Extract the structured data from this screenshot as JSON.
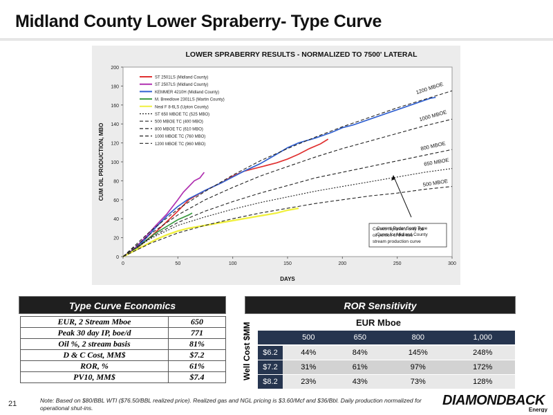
{
  "page": {
    "title": "Midland County Lower Spraberry- Type Curve",
    "page_number": "21",
    "footnote": "Note: Based on $80/BBL WTI ($76.50/BBL realized price). Realized gas and NGL pricing is $3.60/Mcf and $36/Bbl.  Daily production normalized for operational shut-ins.",
    "logo_text": "DIAMONDBACK",
    "logo_sub": "Energy"
  },
  "chart_data": {
    "type": "line",
    "title": "LOWER SPRABERRY RESULTS - NORMALIZED TO 7500' LATERAL",
    "xlabel": "DAYS",
    "ylabel": "CUM OIL PRODUCTION, MBO",
    "xlim": [
      0,
      300
    ],
    "ylim": [
      0,
      200
    ],
    "x_ticks": [
      "0",
      "50",
      "100",
      "150",
      "200",
      "250",
      "300"
    ],
    "y_ticks": [
      "0",
      "20",
      "40",
      "60",
      "80",
      "100",
      "120",
      "140",
      "160",
      "180",
      "200"
    ],
    "grid": false,
    "legend_position": "top-left",
    "series": [
      {
        "name": "ST 2501LS (Midland County)",
        "color": "#e03030",
        "style": "solid",
        "x": [
          0,
          10,
          20,
          30,
          40,
          50,
          60,
          75,
          90,
          100,
          110,
          120,
          130,
          140,
          150,
          160,
          170,
          180,
          187
        ],
        "y": [
          0,
          6,
          16,
          26,
          37,
          48,
          60,
          70,
          78,
          85,
          90,
          93,
          96,
          99,
          103,
          108,
          114,
          119,
          124
        ]
      },
      {
        "name": "ST 2507LS (Midland County)",
        "color": "#b030b0",
        "style": "solid",
        "x": [
          0,
          10,
          20,
          30,
          40,
          50,
          55,
          60,
          65,
          70,
          74
        ],
        "y": [
          0,
          8,
          20,
          33,
          45,
          60,
          68,
          74,
          80,
          83,
          89
        ]
      },
      {
        "name": "KEMMER 4210H (Midland County)",
        "color": "#3060d0",
        "style": "solid",
        "x": [
          0,
          10,
          20,
          30,
          40,
          50,
          60,
          75,
          90,
          100,
          110,
          125,
          140,
          150,
          160,
          175,
          190,
          200,
          210,
          225,
          240,
          255,
          270,
          280,
          285
        ],
        "y": [
          0,
          7,
          18,
          31,
          43,
          53,
          61,
          70,
          78,
          84,
          90,
          98,
          108,
          115,
          120,
          125,
          131,
          136,
          139,
          145,
          151,
          157,
          163,
          167,
          168
        ]
      },
      {
        "name": "M. Breedlove  2301LS (Martin County)",
        "color": "#3a9a40",
        "style": "solid",
        "x": [
          0,
          10,
          20,
          30,
          40,
          50,
          60,
          63
        ],
        "y": [
          0,
          7,
          16,
          25,
          32,
          39,
          44,
          46
        ]
      },
      {
        "name": "Neal F 8-6LS (Upton County)",
        "color": "#f0f040",
        "style": "solid",
        "x": [
          0,
          10,
          20,
          30,
          40,
          50,
          60,
          75,
          90,
          100,
          110,
          125,
          140,
          150,
          160
        ],
        "y": [
          0,
          6,
          12,
          18,
          23,
          27,
          30,
          33,
          36,
          38,
          40,
          43,
          46,
          49,
          51
        ]
      },
      {
        "name": "ST 650 MBOE TC (525 MBO)",
        "color": "#222222",
        "style": "dotted",
        "x": [
          0,
          25,
          50,
          75,
          100,
          125,
          150,
          175,
          200,
          225,
          250,
          275,
          300
        ],
        "y": [
          0,
          19,
          33,
          42,
          50,
          57,
          63,
          69,
          74,
          79,
          84,
          89,
          93
        ]
      },
      {
        "name": "500 MBOE TC (400 MBO)",
        "color": "#222222",
        "style": "dashed",
        "x": [
          0,
          25,
          50,
          75,
          100,
          125,
          150,
          175,
          200,
          225,
          250,
          275,
          300
        ],
        "y": [
          0,
          14,
          25,
          33,
          40,
          46,
          51,
          56,
          60,
          64,
          67,
          71,
          74
        ]
      },
      {
        "name": "800 MBOE TC (610 MBO)",
        "color": "#222222",
        "style": "dashed",
        "x": [
          0,
          25,
          50,
          75,
          100,
          125,
          150,
          175,
          200,
          225,
          250,
          275,
          300
        ],
        "y": [
          0,
          20,
          36,
          48,
          58,
          67,
          75,
          83,
          89,
          95,
          101,
          107,
          113
        ]
      },
      {
        "name": "1000 MBOE TC (760 MBO)",
        "color": "#222222",
        "style": "dashed",
        "x": [
          0,
          25,
          50,
          75,
          100,
          125,
          150,
          175,
          200,
          225,
          250,
          275,
          300
        ],
        "y": [
          0,
          24,
          44,
          60,
          73,
          85,
          95,
          105,
          114,
          122,
          130,
          138,
          145
        ]
      },
      {
        "name": "1200 MBOE TC (960 MBO)",
        "color": "#222222",
        "style": "dashed",
        "x": [
          0,
          25,
          50,
          75,
          100,
          125,
          150,
          175,
          200,
          225,
          250,
          275,
          300
        ],
        "y": [
          0,
          27,
          50,
          69,
          86,
          101,
          114,
          126,
          137,
          147,
          157,
          166,
          175
        ]
      }
    ],
    "curve_labels": [
      "1200 MBOE",
      "1000 MBOE",
      "800 MBOE",
      "650 MBOE",
      "500 MBOE"
    ],
    "annotations": [
      "Curves represent only the oil portion of the two stream production curve",
      "Current Ryder Scott Type Curve for Midland County"
    ]
  },
  "economics": {
    "header": "Type Curve Economics",
    "rows": [
      {
        "label": "EUR, 2 Stream Mboe",
        "value": "650"
      },
      {
        "label": "Peak 30 day IP, boe/d",
        "value": "771"
      },
      {
        "label": "Oil %, 2 stream basis",
        "value": "81%"
      },
      {
        "label": "D & C Cost, MM$",
        "value": "$7.2"
      },
      {
        "label": "ROR, %",
        "value": "61%"
      },
      {
        "label": "PV10, MM$",
        "value": "$7.4"
      }
    ]
  },
  "ror": {
    "header": "ROR Sensitivity",
    "col_title": "EUR Mboe",
    "row_title": "Well Cost $MM",
    "columns": [
      "500",
      "650",
      "800",
      "1,000"
    ],
    "rows": [
      {
        "label": "$6.2",
        "values": [
          "44%",
          "84%",
          "145%",
          "248%"
        ]
      },
      {
        "label": "$7.2",
        "values": [
          "31%",
          "61%",
          "97%",
          "172%"
        ]
      },
      {
        "label": "$8.2",
        "values": [
          "23%",
          "43%",
          "73%",
          "128%"
        ]
      }
    ]
  }
}
